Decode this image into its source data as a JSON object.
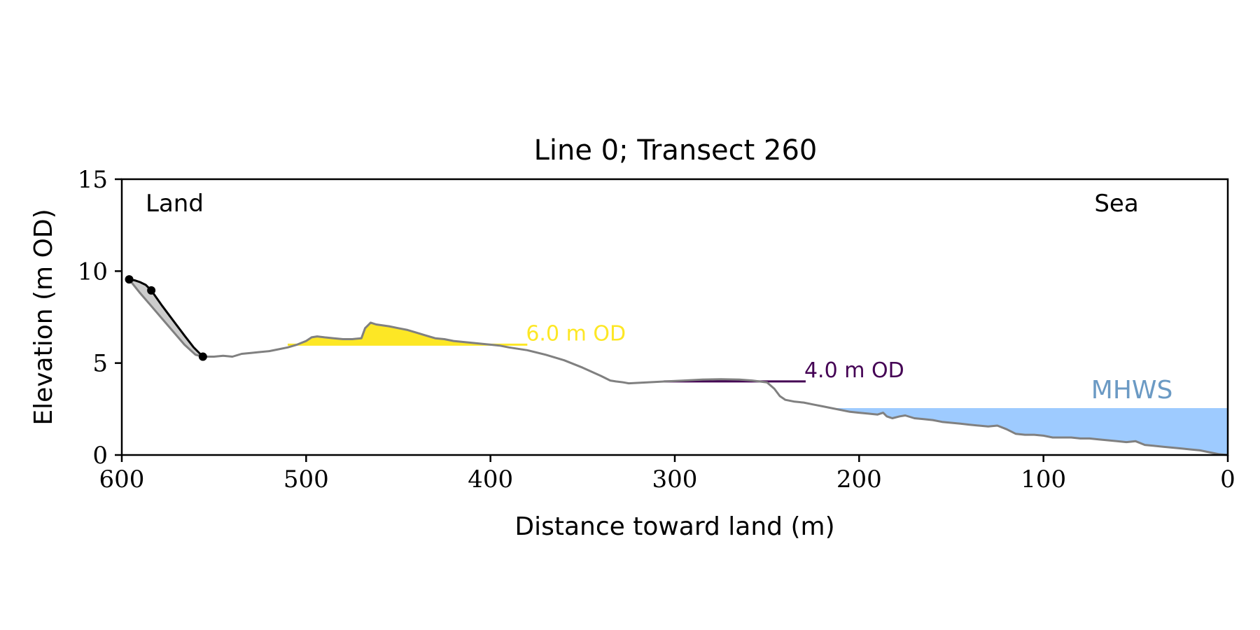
{
  "chart_data": {
    "type": "line",
    "title": "Line 0; Transect 260",
    "xlabel": "Distance toward land (m)",
    "ylabel": "Elevation (m OD)",
    "xlim": [
      600,
      0
    ],
    "ylim": [
      0,
      15
    ],
    "x_ticks": [
      600,
      500,
      400,
      300,
      200,
      100,
      0
    ],
    "y_ticks": [
      0,
      5,
      10,
      15
    ],
    "grid": false,
    "annotations": {
      "land_label": "Land",
      "sea_label": "Sea",
      "mhws_label": "MHWS",
      "level_high_label": "6.0 m OD",
      "level_low_label": "4.0 m OD"
    },
    "levels": {
      "mhws": 2.55,
      "level_high": {
        "value": 6.0,
        "x_start": 510,
        "x_end": 380
      },
      "level_low": {
        "value": 4.0,
        "x_start": 306,
        "x_end": 229
      }
    },
    "colors": {
      "profile": "#808080",
      "cliff": "#000000",
      "cliff_fill": "#cccccc",
      "level_high": "#fde725",
      "level_low": "#440154",
      "mhws_fill": "#9ecbff",
      "mhws_text": "#6b9ac4"
    },
    "cliff_points": [
      {
        "x": 596,
        "y": 9.55
      },
      {
        "x": 584,
        "y": 8.95
      },
      {
        "x": 556,
        "y": 5.35
      }
    ],
    "cliff_curve": [
      [
        596,
        9.55
      ],
      [
        593,
        9.5
      ],
      [
        590,
        9.4
      ],
      [
        587,
        9.25
      ],
      [
        584,
        8.95
      ],
      [
        578,
        8.1
      ],
      [
        572,
        7.3
      ],
      [
        566,
        6.5
      ],
      [
        561,
        5.85
      ],
      [
        556,
        5.35
      ]
    ],
    "profile": [
      [
        596,
        9.55
      ],
      [
        590,
        8.8
      ],
      [
        584,
        8.1
      ],
      [
        578,
        7.4
      ],
      [
        572,
        6.7
      ],
      [
        566,
        6.0
      ],
      [
        560,
        5.45
      ],
      [
        556,
        5.35
      ],
      [
        550,
        5.35
      ],
      [
        545,
        5.4
      ],
      [
        540,
        5.35
      ],
      [
        535,
        5.5
      ],
      [
        530,
        5.55
      ],
      [
        525,
        5.6
      ],
      [
        520,
        5.65
      ],
      [
        515,
        5.75
      ],
      [
        510,
        5.85
      ],
      [
        505,
        6.0
      ],
      [
        500,
        6.2
      ],
      [
        497,
        6.4
      ],
      [
        494,
        6.45
      ],
      [
        490,
        6.4
      ],
      [
        485,
        6.35
      ],
      [
        480,
        6.3
      ],
      [
        475,
        6.3
      ],
      [
        470,
        6.35
      ],
      [
        468,
        6.9
      ],
      [
        465,
        7.2
      ],
      [
        462,
        7.1
      ],
      [
        455,
        7.0
      ],
      [
        450,
        6.9
      ],
      [
        445,
        6.8
      ],
      [
        440,
        6.65
      ],
      [
        435,
        6.5
      ],
      [
        430,
        6.35
      ],
      [
        425,
        6.3
      ],
      [
        420,
        6.2
      ],
      [
        410,
        6.1
      ],
      [
        400,
        6.0
      ],
      [
        395,
        5.95
      ],
      [
        390,
        5.85
      ],
      [
        380,
        5.7
      ],
      [
        370,
        5.45
      ],
      [
        360,
        5.15
      ],
      [
        350,
        4.75
      ],
      [
        340,
        4.3
      ],
      [
        335,
        4.05
      ],
      [
        332,
        4.0
      ],
      [
        328,
        3.95
      ],
      [
        325,
        3.9
      ],
      [
        315,
        3.95
      ],
      [
        305,
        4.0
      ],
      [
        295,
        4.05
      ],
      [
        285,
        4.1
      ],
      [
        275,
        4.12
      ],
      [
        265,
        4.1
      ],
      [
        258,
        4.05
      ],
      [
        250,
        3.95
      ],
      [
        246,
        3.6
      ],
      [
        243,
        3.2
      ],
      [
        240,
        3.0
      ],
      [
        235,
        2.9
      ],
      [
        230,
        2.85
      ],
      [
        225,
        2.75
      ],
      [
        220,
        2.65
      ],
      [
        215,
        2.55
      ],
      [
        210,
        2.45
      ],
      [
        205,
        2.35
      ],
      [
        200,
        2.3
      ],
      [
        195,
        2.25
      ],
      [
        190,
        2.2
      ],
      [
        187,
        2.3
      ],
      [
        185,
        2.1
      ],
      [
        182,
        2.0
      ],
      [
        178,
        2.1
      ],
      [
        175,
        2.15
      ],
      [
        170,
        2.0
      ],
      [
        165,
        1.95
      ],
      [
        160,
        1.9
      ],
      [
        155,
        1.8
      ],
      [
        150,
        1.75
      ],
      [
        145,
        1.7
      ],
      [
        140,
        1.65
      ],
      [
        135,
        1.6
      ],
      [
        130,
        1.55
      ],
      [
        125,
        1.6
      ],
      [
        120,
        1.4
      ],
      [
        115,
        1.15
      ],
      [
        110,
        1.1
      ],
      [
        105,
        1.1
      ],
      [
        100,
        1.05
      ],
      [
        95,
        0.95
      ],
      [
        90,
        0.95
      ],
      [
        85,
        0.95
      ],
      [
        80,
        0.9
      ],
      [
        75,
        0.9
      ],
      [
        70,
        0.85
      ],
      [
        65,
        0.8
      ],
      [
        60,
        0.75
      ],
      [
        55,
        0.7
      ],
      [
        50,
        0.75
      ],
      [
        45,
        0.55
      ],
      [
        40,
        0.5
      ],
      [
        35,
        0.45
      ],
      [
        30,
        0.4
      ],
      [
        25,
        0.35
      ],
      [
        20,
        0.3
      ],
      [
        15,
        0.25
      ],
      [
        10,
        0.15
      ],
      [
        5,
        0.05
      ],
      [
        0,
        0.0
      ]
    ]
  }
}
